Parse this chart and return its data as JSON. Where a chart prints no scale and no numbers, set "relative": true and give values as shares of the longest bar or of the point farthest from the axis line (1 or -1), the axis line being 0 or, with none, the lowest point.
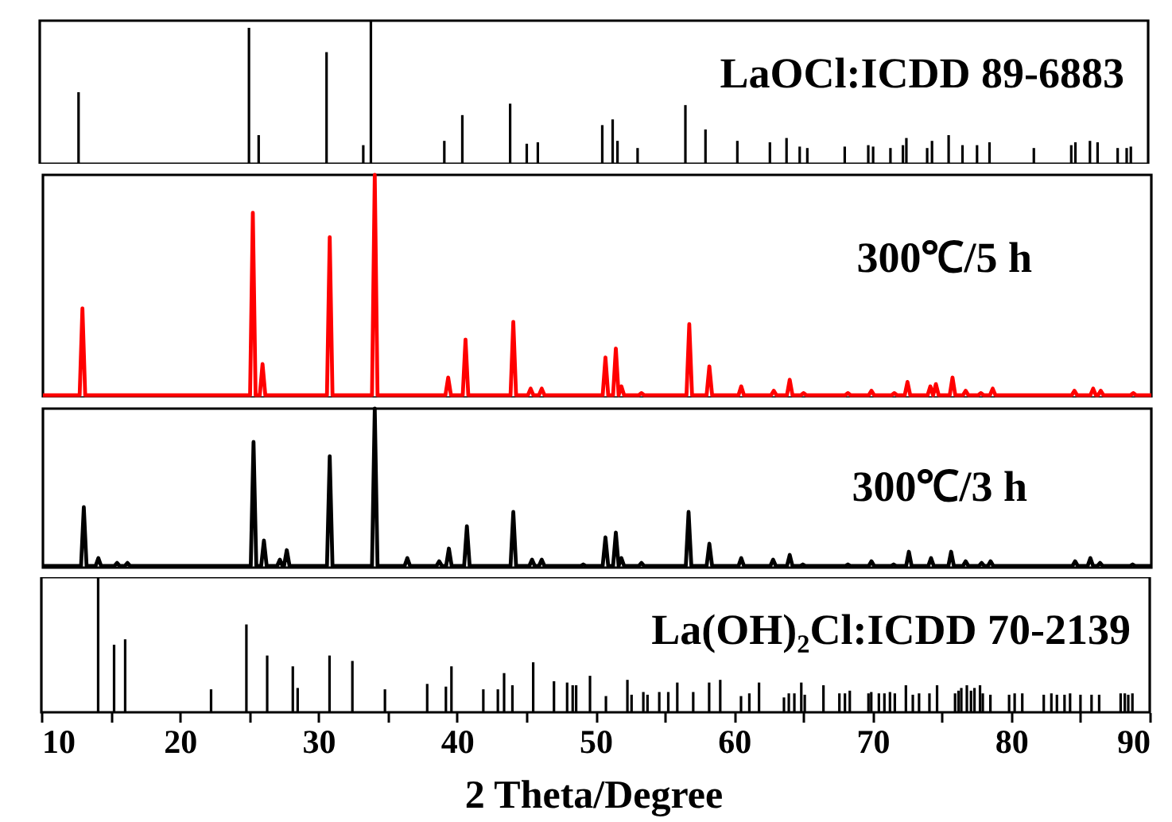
{
  "chart_data": [
    {
      "type": "bar",
      "relative": true,
      "xlim": [
        10,
        90
      ],
      "tick_labels": false,
      "x": [
        12.8,
        25.1,
        25.8,
        30.7,
        33.35,
        33.9,
        39.2,
        40.5,
        43.95,
        45.15,
        45.95,
        50.6,
        51.35,
        51.7,
        53.15,
        56.6,
        58.05,
        60.35,
        62.7,
        63.9,
        64.85,
        65.4,
        68.1,
        69.8,
        70.15,
        71.4,
        72.3,
        72.55,
        74.05,
        74.4,
        75.6,
        76.6,
        77.65,
        78.55,
        81.75,
        84.45,
        84.75,
        85.8,
        86.35,
        87.8,
        88.45,
        88.75
      ],
      "series": [
        {
          "name": "LaOCl:ICDD 89-6883",
          "color": "#000000",
          "values": [
            0.5,
            0.95,
            0.2,
            0.78,
            0.13,
            1,
            0.16,
            0.34,
            0.42,
            0.14,
            0.15,
            0.27,
            0.31,
            0.16,
            0.11,
            0.41,
            0.24,
            0.16,
            0.15,
            0.18,
            0.12,
            0.11,
            0.12,
            0.13,
            0.12,
            0.11,
            0.13,
            0.18,
            0.11,
            0.16,
            0.2,
            0.13,
            0.13,
            0.15,
            0.11,
            0.13,
            0.15,
            0.16,
            0.15,
            0.11,
            0.11,
            0.12
          ]
        }
      ]
    },
    {
      "type": "line",
      "relative": true,
      "xlim": [
        10,
        90
      ],
      "tick_labels": false,
      "series": [
        {
          "name": "300℃/5 h",
          "color": "#ff0000",
          "x": [
            10,
            12.65,
            12.85,
            13.05,
            24.95,
            25.15,
            25.35,
            25.65,
            25.85,
            26.05,
            30.5,
            30.7,
            30.9,
            33.75,
            33.95,
            34.15,
            39.05,
            39.25,
            39.45,
            40.3,
            40.5,
            40.7,
            43.75,
            43.95,
            44.15,
            45.0,
            45.2,
            45.4,
            45.8,
            46.0,
            46.2,
            50.4,
            50.6,
            50.8,
            51.15,
            51.35,
            51.55,
            51.75,
            51.95,
            53.0,
            53.2,
            53.4,
            56.45,
            56.65,
            56.85,
            57.9,
            58.1,
            58.3,
            60.2,
            60.4,
            60.6,
            62.55,
            62.75,
            62.95,
            63.7,
            63.9,
            64.1,
            64.7,
            64.9,
            65.1,
            67.9,
            68.1,
            68.3,
            69.6,
            69.8,
            70.0,
            71.25,
            71.45,
            71.65,
            72.2,
            72.4,
            72.6,
            73.85,
            74.05,
            74.25,
            74.45,
            74.65,
            75.45,
            75.65,
            75.85,
            76.4,
            76.6,
            76.8,
            77.5,
            77.7,
            77.9,
            78.35,
            78.55,
            78.75,
            84.25,
            84.45,
            84.65,
            85.6,
            85.8,
            86.0,
            86.15,
            86.35,
            86.55,
            88.5,
            88.7,
            88.9,
            90
          ],
          "values": [
            0.01,
            0.01,
            0.4,
            0.01,
            0.01,
            0.83,
            0.01,
            0.01,
            0.15,
            0.01,
            0.01,
            0.72,
            0.01,
            0.01,
            1,
            0.01,
            0.01,
            0.09,
            0.01,
            0.01,
            0.26,
            0.01,
            0.01,
            0.34,
            0.01,
            0.01,
            0.04,
            0.01,
            0.01,
            0.04,
            0.01,
            0.01,
            0.18,
            0.01,
            0.01,
            0.22,
            0.01,
            0.05,
            0.01,
            0.01,
            0.02,
            0.01,
            0.01,
            0.33,
            0.01,
            0.01,
            0.14,
            0.01,
            0.01,
            0.05,
            0.01,
            0.01,
            0.03,
            0.01,
            0.01,
            0.08,
            0.01,
            0.01,
            0.02,
            0.01,
            0.01,
            0.02,
            0.01,
            0.01,
            0.03,
            0.01,
            0.01,
            0.02,
            0.01,
            0.01,
            0.07,
            0.01,
            0.01,
            0.05,
            0.01,
            0.06,
            0.01,
            0.01,
            0.09,
            0.01,
            0.01,
            0.03,
            0.01,
            0.01,
            0.02,
            0.01,
            0.01,
            0.04,
            0.01,
            0.01,
            0.03,
            0.01,
            0.01,
            0.04,
            0.01,
            0.01,
            0.03,
            0.01,
            0.01,
            0.02,
            0.01,
            0.01
          ]
        }
      ]
    },
    {
      "type": "line",
      "relative": true,
      "xlim": [
        10,
        90
      ],
      "tick_labels": false,
      "series": [
        {
          "name": "300℃/3 h",
          "color": "#000000",
          "x": [
            10,
            12.75,
            12.95,
            13.15,
            13.8,
            14.0,
            14.2,
            15.15,
            15.35,
            15.55,
            15.9,
            16.1,
            16.3,
            25.0,
            25.2,
            25.4,
            25.75,
            25.95,
            26.15,
            26.9,
            27.1,
            27.3,
            27.4,
            27.6,
            27.8,
            30.5,
            30.7,
            30.9,
            33.75,
            33.95,
            34.15,
            36.1,
            36.3,
            36.5,
            38.4,
            38.6,
            38.8,
            39.1,
            39.3,
            39.5,
            40.4,
            40.6,
            40.8,
            43.75,
            43.95,
            44.15,
            45.1,
            45.3,
            45.5,
            45.8,
            46.0,
            46.2,
            48.8,
            49.0,
            49.2,
            50.4,
            50.6,
            50.8,
            51.15,
            51.35,
            51.55,
            51.75,
            51.95,
            53.0,
            53.2,
            53.4,
            56.4,
            56.6,
            56.8,
            57.9,
            58.1,
            58.3,
            60.2,
            60.4,
            60.6,
            62.5,
            62.7,
            62.9,
            63.7,
            63.9,
            64.1,
            64.65,
            64.85,
            65.05,
            67.9,
            68.1,
            68.3,
            69.6,
            69.8,
            70.0,
            71.2,
            71.4,
            71.6,
            72.3,
            72.5,
            72.7,
            73.9,
            74.1,
            74.3,
            75.35,
            75.55,
            75.75,
            76.4,
            76.6,
            76.8,
            77.55,
            77.75,
            77.95,
            78.2,
            78.4,
            78.6,
            84.3,
            84.5,
            84.7,
            85.4,
            85.6,
            85.8,
            86.1,
            86.3,
            86.5,
            88.45,
            88.65,
            88.85,
            90
          ],
          "values": [
            0.01,
            0.01,
            0.38,
            0.01,
            0.01,
            0.06,
            0.01,
            0.01,
            0.03,
            0.01,
            0.01,
            0.03,
            0.01,
            0.01,
            0.79,
            0.01,
            0.01,
            0.17,
            0.01,
            0.01,
            0.05,
            0.01,
            0.01,
            0.11,
            0.01,
            0.01,
            0.7,
            0.01,
            0.01,
            1,
            0.01,
            0.01,
            0.06,
            0.01,
            0.01,
            0.04,
            0.01,
            0.01,
            0.12,
            0.01,
            0.01,
            0.26,
            0.01,
            0.01,
            0.35,
            0.01,
            0.01,
            0.05,
            0.01,
            0.01,
            0.05,
            0.01,
            0.01,
            0.02,
            0.01,
            0.01,
            0.19,
            0.01,
            0.01,
            0.22,
            0.01,
            0.06,
            0.01,
            0.01,
            0.03,
            0.01,
            0.01,
            0.35,
            0.01,
            0.01,
            0.15,
            0.01,
            0.01,
            0.06,
            0.01,
            0.01,
            0.05,
            0.01,
            0.01,
            0.08,
            0.01,
            0.01,
            0.02,
            0.01,
            0.01,
            0.02,
            0.01,
            0.01,
            0.04,
            0.01,
            0.01,
            0.02,
            0.01,
            0.01,
            0.1,
            0.01,
            0.01,
            0.06,
            0.01,
            0.01,
            0.1,
            0.01,
            0.01,
            0.04,
            0.01,
            0.01,
            0.03,
            0.01,
            0.01,
            0.04,
            0.01,
            0.01,
            0.04,
            0.01,
            0.01,
            0.06,
            0.01,
            0.01,
            0.03,
            0.01,
            0.01,
            0.02,
            0.01,
            0.01
          ]
        }
      ]
    },
    {
      "type": "bar",
      "relative": true,
      "xlim": [
        10,
        90
      ],
      "tick_labels": "x",
      "xlabel": "2 Theta/Degree",
      "xticks": [
        10,
        {
          "value": 15,
          "label": null
        },
        20,
        {
          "value": 25,
          "label": null
        },
        30,
        {
          "value": 35,
          "label": null
        },
        40,
        {
          "value": 45,
          "label": null
        },
        50,
        {
          "value": 55,
          "label": null
        },
        60,
        {
          "value": 65,
          "label": null
        },
        70,
        {
          "value": 75,
          "label": null
        },
        80,
        {
          "value": 85,
          "label": null
        },
        90
      ],
      "x": [
        14.1,
        15.25,
        16.05,
        22.25,
        24.8,
        26.3,
        28.15,
        28.5,
        30.8,
        32.45,
        34.8,
        37.85,
        39.2,
        39.6,
        41.9,
        42.95,
        43.4,
        44.0,
        45.5,
        47.0,
        47.95,
        48.35,
        48.6,
        49.6,
        50.75,
        52.3,
        52.6,
        53.45,
        53.75,
        54.6,
        55.25,
        55.9,
        57.05,
        58.2,
        59.0,
        60.5,
        61.1,
        61.8,
        63.6,
        63.95,
        64.35,
        64.85,
        65.1,
        66.45,
        67.6,
        68.0,
        68.35,
        69.7,
        69.9,
        70.45,
        70.85,
        71.25,
        71.6,
        72.4,
        72.9,
        73.35,
        74.1,
        74.65,
        75.95,
        76.2,
        76.4,
        76.8,
        77.1,
        77.35,
        77.75,
        77.95,
        78.5,
        79.85,
        80.25,
        80.8,
        82.35,
        82.9,
        83.3,
        83.85,
        84.25,
        85.0,
        85.8,
        86.35,
        87.9,
        88.2,
        88.45,
        88.75
      ],
      "series": [
        {
          "name": "La(OH)₂Cl:ICDD 70-2139",
          "color": "#000000",
          "values": [
            1,
            0.5,
            0.54,
            0.17,
            0.65,
            0.42,
            0.34,
            0.18,
            0.42,
            0.38,
            0.17,
            0.21,
            0.19,
            0.34,
            0.17,
            0.17,
            0.29,
            0.2,
            0.37,
            0.23,
            0.22,
            0.2,
            0.2,
            0.27,
            0.12,
            0.24,
            0.13,
            0.15,
            0.13,
            0.15,
            0.15,
            0.22,
            0.15,
            0.22,
            0.24,
            0.12,
            0.14,
            0.22,
            0.11,
            0.14,
            0.14,
            0.22,
            0.13,
            0.2,
            0.14,
            0.14,
            0.16,
            0.14,
            0.15,
            0.14,
            0.14,
            0.15,
            0.14,
            0.2,
            0.13,
            0.14,
            0.14,
            0.2,
            0.14,
            0.16,
            0.18,
            0.2,
            0.16,
            0.18,
            0.2,
            0.14,
            0.13,
            0.13,
            0.14,
            0.14,
            0.13,
            0.14,
            0.13,
            0.13,
            0.14,
            0.13,
            0.13,
            0.13,
            0.14,
            0.14,
            0.13,
            0.14
          ]
        }
      ]
    }
  ]
}
